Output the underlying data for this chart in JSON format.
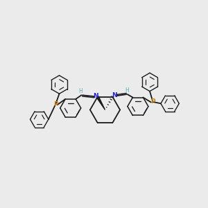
{
  "bg_color": "#ebebeb",
  "bond_color": "#1a1a1a",
  "P_color": "#c8820a",
  "N_color": "#2222cc",
  "H_color": "#5aafaf",
  "figsize": [
    3.0,
    3.0
  ],
  "dpi": 100,
  "xlim": [
    0,
    10
  ],
  "ylim": [
    0,
    10
  ]
}
